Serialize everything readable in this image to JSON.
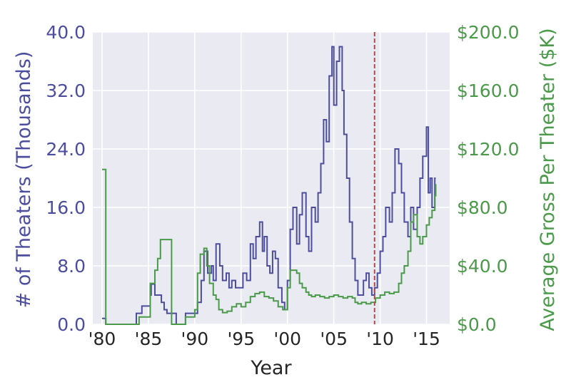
{
  "chart_data": {
    "type": "line",
    "xlabel": "Year",
    "ylabel_left": "# of Theaters (Thousands)",
    "ylabel_right": "Average Gross Per Theater ($K)",
    "xlim": [
      1979,
      2017.5
    ],
    "ylim_left": [
      0,
      40
    ],
    "ylim_right": [
      0,
      200
    ],
    "x_ticks": [
      {
        "value": 1980,
        "label": "'80"
      },
      {
        "value": 1985,
        "label": "'85"
      },
      {
        "value": 1990,
        "label": "'90"
      },
      {
        "value": 1995,
        "label": "'95"
      },
      {
        "value": 2000,
        "label": "'00"
      },
      {
        "value": 2005,
        "label": "'05"
      },
      {
        "value": 2010,
        "label": "'10"
      },
      {
        "value": 2015,
        "label": "'15"
      }
    ],
    "y_left_ticks": [
      {
        "value": 0,
        "label": "0.0"
      },
      {
        "value": 8,
        "label": "8.0"
      },
      {
        "value": 16,
        "label": "16.0"
      },
      {
        "value": 24,
        "label": "24.0"
      },
      {
        "value": 32,
        "label": "32.0"
      },
      {
        "value": 40,
        "label": "40.0"
      }
    ],
    "y_right_ticks": [
      {
        "value": 0,
        "label": "$0.0"
      },
      {
        "value": 40,
        "label": "$40.0"
      },
      {
        "value": 80,
        "label": "$80.0"
      },
      {
        "value": 120,
        "label": "$120.0"
      },
      {
        "value": 160,
        "label": "$160.0"
      },
      {
        "value": 200,
        "label": "$200.0"
      }
    ],
    "grid": true,
    "vline": {
      "x": 2009.4,
      "style": "dashed"
    },
    "colors": {
      "theaters": "#4c4d9e",
      "gross": "#4a9a4a",
      "vline": "#b04e4e",
      "background": "#eaeaf2",
      "grid": "#ffffff",
      "text": "#262626"
    },
    "series": [
      {
        "axis": "left",
        "step": true,
        "x": [
          1980,
          1980.4,
          1981,
          1983,
          1983.7,
          1984.3,
          1985.2,
          1985.3,
          1985.7,
          1986.1,
          1986.4,
          1986.7,
          1987,
          1987.5,
          1988,
          1989,
          1990,
          1990.3,
          1990.7,
          1991,
          1991.4,
          1991.8,
          1992,
          1992.3,
          1992.7,
          1993,
          1993.4,
          1993.7,
          1994,
          1994.4,
          1994.8,
          1995.2,
          1995.6,
          1996,
          1996.3,
          1996.6,
          1997,
          1997.3,
          1997.5,
          1997.8,
          1998.1,
          1998.4,
          1998.7,
          1999,
          1999.4,
          1999.7,
          2000,
          2000.3,
          2000.6,
          2001,
          2001.3,
          2001.6,
          2002,
          2002.3,
          2002.6,
          2003,
          2003.3,
          2003.6,
          2003.9,
          2004.2,
          2004.5,
          2004.8,
          2005,
          2005.3,
          2005.6,
          2005.9,
          2006.1,
          2006.4,
          2006.7,
          2007,
          2007.3,
          2007.6,
          2008,
          2008.2,
          2008.5,
          2008.8,
          2009.1,
          2009.4,
          2009.7,
          2010,
          2010.3,
          2010.6,
          2011,
          2011.3,
          2011.6,
          2012,
          2012.3,
          2012.6,
          2013,
          2013.3,
          2013.6,
          2014,
          2014.3,
          2014.6,
          2015,
          2015.2,
          2015.4,
          2015.6,
          2015.9,
          2016
        ],
        "values": [
          0.8,
          0,
          0,
          0,
          1.5,
          2.5,
          4,
          5.5,
          4,
          4,
          3,
          2,
          1.5,
          1.5,
          0,
          1.5,
          1.5,
          3,
          6,
          10,
          7,
          8,
          6,
          11,
          8,
          6,
          7,
          5,
          6,
          5,
          5,
          7,
          6,
          11,
          9,
          12,
          14,
          10,
          12,
          8,
          7,
          10,
          9,
          5,
          3,
          2,
          6,
          13,
          16,
          11,
          15,
          18,
          12,
          10,
          16,
          14,
          18,
          22,
          28,
          25,
          34,
          38,
          30,
          36,
          38,
          32,
          26,
          20,
          14,
          9,
          6,
          4,
          4,
          6,
          7,
          5,
          4,
          5,
          7,
          10,
          12,
          16,
          14,
          18,
          24,
          22,
          18,
          14,
          12,
          16,
          13,
          16,
          20,
          23,
          27,
          18,
          20,
          16,
          20,
          20
        ]
      },
      {
        "axis": "right",
        "step": true,
        "x": [
          1980,
          1980.4,
          1983,
          1984,
          1985.2,
          1985.7,
          1986,
          1986.3,
          1986.6,
          1987,
          1987.5,
          1988,
          1989,
          1990,
          1990.3,
          1990.6,
          1991,
          1991.3,
          1991.6,
          1992,
          1992.3,
          1992.6,
          1993,
          1993.5,
          1994,
          1994.5,
          1995,
          1995.5,
          1996,
          1996.5,
          1997,
          1997.5,
          1998,
          1998.5,
          1999,
          1999.5,
          2000,
          2000.3,
          2000.6,
          2001,
          2001.3,
          2001.6,
          2002,
          2002.3,
          2002.6,
          2003,
          2003.5,
          2004,
          2004.5,
          2005,
          2005.5,
          2006,
          2006.5,
          2007,
          2007.3,
          2007.6,
          2008,
          2008.5,
          2009,
          2009.5,
          2010,
          2010.5,
          2011,
          2011.5,
          2012,
          2012.3,
          2012.6,
          2013,
          2013.3,
          2013.6,
          2014,
          2014.3,
          2014.6,
          2015,
          2015.3,
          2015.6,
          2015.9,
          2016
        ],
        "values": [
          106,
          0,
          0,
          5,
          28,
          37,
          45,
          58,
          58,
          58,
          0,
          0,
          5,
          10,
          35,
          48,
          52,
          40,
          28,
          20,
          17,
          10,
          8,
          9,
          12,
          14,
          12,
          15,
          19,
          21,
          22,
          19,
          18,
          16,
          12,
          10,
          25,
          37,
          37,
          35,
          28,
          25,
          22,
          20,
          19,
          20,
          19,
          18,
          19,
          20,
          19,
          18,
          19,
          18,
          15,
          14,
          15,
          14,
          15,
          18,
          20,
          22,
          21,
          22,
          28,
          35,
          40,
          50,
          70,
          75,
          60,
          55,
          60,
          68,
          73,
          78,
          88,
          96
        ]
      }
    ]
  }
}
